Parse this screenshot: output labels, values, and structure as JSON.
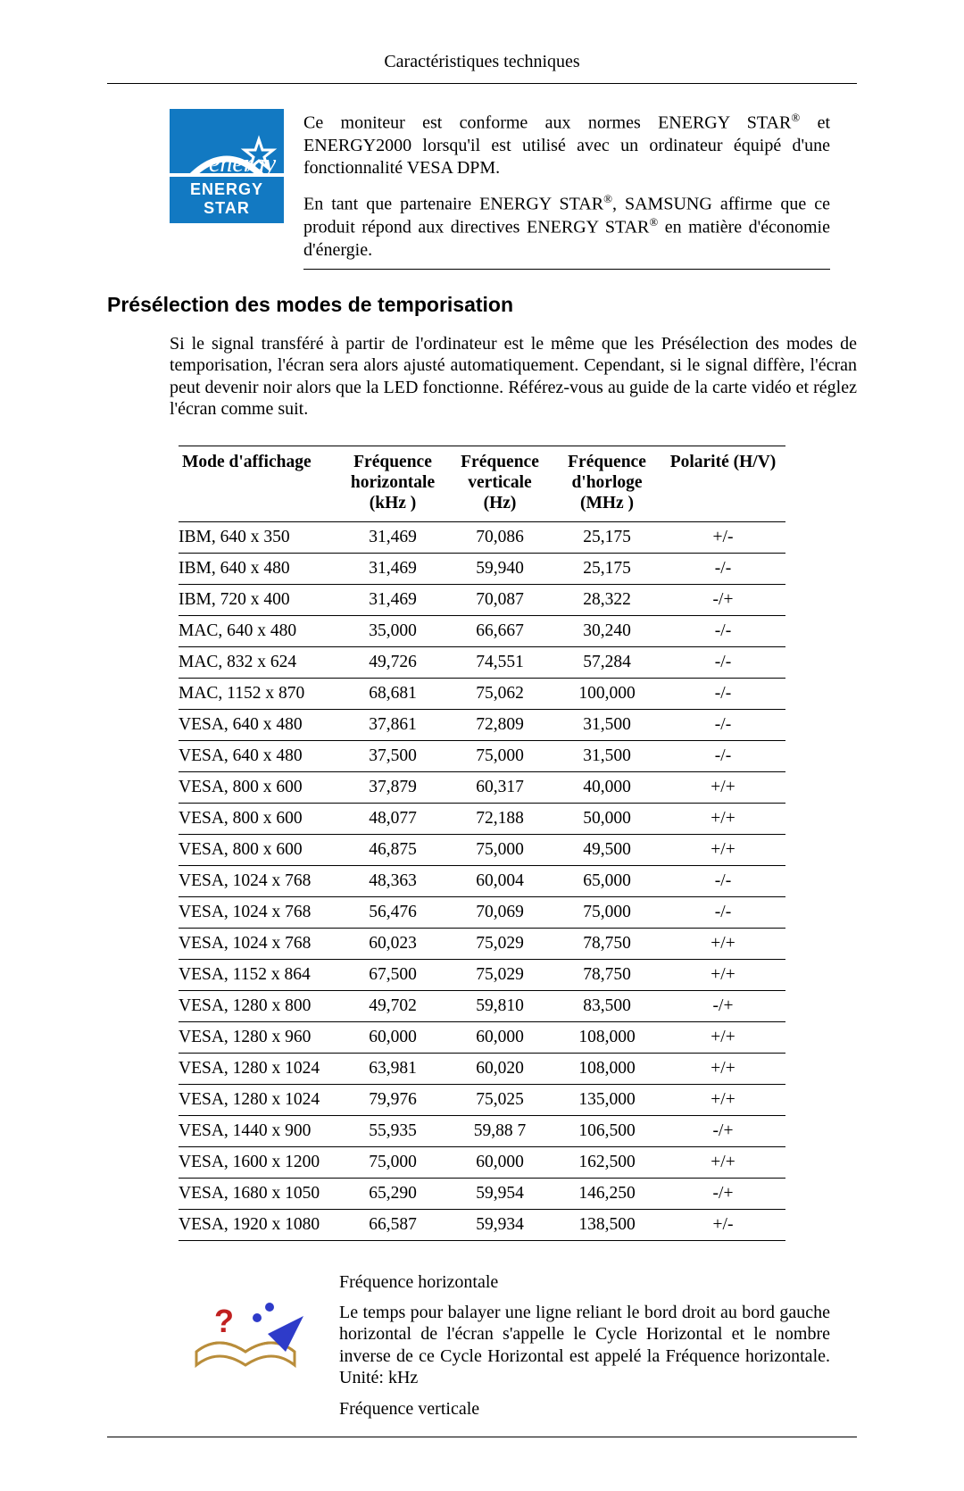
{
  "header": {
    "title": "Caractéristiques techniques"
  },
  "energy": {
    "logo_label": "ENERGY STAR",
    "logo_bg": "#1279c2",
    "logo_fg": "#ffffff",
    "para1": "Ce moniteur est conforme aux normes ENERGY STAR® et ENERGY2000 lorsqu'il est utilisé avec un ordinateur équipé d'une fonctionnalité VESA DPM.",
    "para2": "En tant que partenaire ENERGY STAR®, SAMSUNG affirme que ce produit répond aux directives ENERGY STAR® en matière d'économie d'énergie."
  },
  "section": {
    "title": "Présélection des modes de temporisation",
    "intro": "Si le signal transféré à partir de l'ordinateur est le même que les Présélection des modes de temporisation, l'écran sera alors ajusté automatiquement. Cependant, si le signal diffère, l'écran peut devenir noir alors que la LED fonctionne. Référez-vous au guide de la carte vidéo et réglez l'écran comme suit."
  },
  "table": {
    "columns": [
      "Mode d'affichage",
      "Fréquence horizontale (kHz )",
      "Fréquence verticale (Hz)",
      "Fréquence d'horloge (MHz )",
      "Polarité (H/V)"
    ],
    "col_header_parts": {
      "c1": "Mode d'affichage",
      "c2a": "Fréquence",
      "c2b": "horizontale",
      "c2c": "(kHz )",
      "c3a": "Fréquence",
      "c3b": "verticale",
      "c3c": "(Hz)",
      "c4a": "Fréquence",
      "c4b": "d'horloge",
      "c4c": "(MHz )",
      "c5": "Polarité (H/V)"
    },
    "rows": [
      [
        "IBM, 640 x 350",
        "31,469",
        "70,086",
        "25,175",
        "+/-"
      ],
      [
        "IBM, 640 x 480",
        "31,469",
        "59,940",
        "25,175",
        "-/-"
      ],
      [
        "IBM, 720 x 400",
        "31,469",
        "70,087",
        "28,322",
        "-/+"
      ],
      [
        "MAC, 640 x 480",
        "35,000",
        "66,667",
        "30,240",
        "-/-"
      ],
      [
        "MAC, 832 x 624",
        "49,726",
        "74,551",
        "57,284",
        "-/-"
      ],
      [
        "MAC, 1152 x 870",
        "68,681",
        "75,062",
        "100,000",
        "-/-"
      ],
      [
        "VESA, 640 x 480",
        "37,861",
        "72,809",
        "31,500",
        "-/-"
      ],
      [
        "VESA, 640 x 480",
        "37,500",
        "75,000",
        "31,500",
        "-/-"
      ],
      [
        "VESA, 800 x 600",
        "37,879",
        "60,317",
        "40,000",
        "+/+"
      ],
      [
        "VESA, 800 x 600",
        "48,077",
        "72,188",
        "50,000",
        "+/+"
      ],
      [
        "VESA, 800 x 600",
        "46,875",
        "75,000",
        "49,500",
        "+/+"
      ],
      [
        "VESA, 1024 x 768",
        "48,363",
        "60,004",
        "65,000",
        "-/-"
      ],
      [
        "VESA, 1024 x 768",
        "56,476",
        "70,069",
        "75,000",
        "-/-"
      ],
      [
        "VESA, 1024 x 768",
        "60,023",
        "75,029",
        "78,750",
        "+/+"
      ],
      [
        "VESA, 1152 x 864",
        "67,500",
        "75,029",
        "78,750",
        "+/+"
      ],
      [
        "VESA, 1280 x 800",
        "49,702",
        "59,810",
        "83,500",
        "-/+"
      ],
      [
        "VESA, 1280 x 960",
        "60,000",
        "60,000",
        "108,000",
        "+/+"
      ],
      [
        "VESA, 1280 x 1024",
        "63,981",
        "60,020",
        "108,000",
        "+/+"
      ],
      [
        "VESA, 1280 x 1024",
        "79,976",
        "75,025",
        "135,000",
        "+/+"
      ],
      [
        "VESA, 1440 x 900",
        "55,935",
        "59,88 7",
        "106,500",
        "-/+"
      ],
      [
        "VESA, 1600 x 1200",
        "75,000",
        "60,000",
        "162,500",
        "+/+"
      ],
      [
        "VESA, 1680 x 1050",
        "65,290",
        "59,954",
        "146,250",
        "-/+"
      ],
      [
        "VESA, 1920 x 1080",
        "66,587",
        "59,934",
        "138,500",
        "+/-"
      ]
    ]
  },
  "freq": {
    "h_title": "Fréquence horizontale",
    "h_body": "Le temps pour balayer une ligne reliant le bord droit au bord gauche horizontal de l'écran s'appelle le Cycle Horizontal et le nombre inverse de ce Cycle Horizontal est appelé la Fréquence horizontale. Unité: kHz",
    "v_title": "Fréquence verticale"
  }
}
